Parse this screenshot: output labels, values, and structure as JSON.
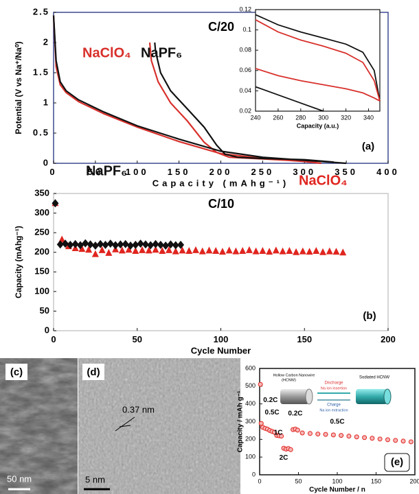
{
  "chart_data": [
    {
      "type": "line",
      "title": "C/20",
      "panel_label": "(a)",
      "xlabel": "Capacity (mAhg⁻¹)",
      "ylabel": "Potential (V vs Na⁺/Na⁰)",
      "xlim": [
        0,
        400
      ],
      "xticks": [
        0,
        50,
        100,
        150,
        200,
        250,
        300,
        350,
        400
      ],
      "ylim": [
        0,
        2.5
      ],
      "yticks": [
        0,
        0.5,
        1,
        1.5,
        2,
        2.5
      ],
      "series": [
        {
          "name": "NaClO₄",
          "color": "#d8302b",
          "x": [
            0,
            3,
            8,
            15,
            30,
            60,
            100,
            150,
            200,
            250,
            300,
            320,
            null,
            315,
            280,
            240,
            210,
            195,
            180,
            160,
            140,
            125,
            117,
            115
          ],
          "values": [
            2.45,
            1.6,
            1.3,
            1.17,
            1.02,
            0.82,
            0.6,
            0.36,
            0.16,
            0.08,
            0.03,
            0,
            null,
            0.02,
            0.05,
            0.08,
            0.1,
            0.18,
            0.35,
            0.7,
            1.0,
            1.35,
            1.7,
            2.0
          ]
        },
        {
          "name": "NaPF₆",
          "color": "#111111",
          "x": [
            0,
            3,
            8,
            15,
            30,
            60,
            100,
            150,
            200,
            250,
            300,
            330,
            350,
            null,
            335,
            300,
            250,
            220,
            205,
            195,
            180,
            160,
            140,
            128,
            122,
            121
          ],
          "values": [
            2.45,
            1.7,
            1.35,
            1.2,
            1.05,
            0.85,
            0.62,
            0.4,
            0.2,
            0.1,
            0.05,
            0.02,
            0,
            null,
            0.02,
            0.06,
            0.08,
            0.1,
            0.15,
            0.3,
            0.6,
            0.9,
            1.2,
            1.5,
            1.85,
            2.0
          ]
        }
      ]
    },
    {
      "type": "line",
      "xlabel": "Capacity (a.u.)",
      "xlim": [
        240,
        350
      ],
      "xticks": [
        240,
        260,
        280,
        300,
        320,
        340
      ],
      "ylim": [
        0.02,
        0.12
      ],
      "yticks": [
        0.02,
        0.04,
        0.06,
        0.08,
        0.1,
        0.12
      ],
      "series": [
        {
          "color": "#111111",
          "x": [
            240,
            260,
            280,
            300,
            320,
            335,
            345,
            350
          ],
          "values": [
            0.115,
            0.105,
            0.098,
            0.092,
            0.086,
            0.078,
            0.06,
            0.03
          ]
        },
        {
          "color": "#111111",
          "x": [
            240,
            260,
            280,
            300
          ],
          "values": [
            0.044,
            0.036,
            0.028,
            0.02
          ]
        },
        {
          "color": "#d8302b",
          "x": [
            240,
            260,
            280,
            300,
            320,
            335,
            345,
            350
          ],
          "values": [
            0.11,
            0.098,
            0.09,
            0.084,
            0.077,
            0.068,
            0.05,
            0.03
          ]
        },
        {
          "color": "#d8302b",
          "x": [
            240,
            260,
            280,
            300,
            320,
            335,
            345,
            350
          ],
          "values": [
            0.062,
            0.055,
            0.05,
            0.046,
            0.042,
            0.038,
            0.033,
            0.03
          ]
        }
      ]
    },
    {
      "type": "scatter",
      "title": "C/10",
      "panel_label": "(b)",
      "xlabel": "Cycle Number",
      "ylabel": "Capacity (mAhg⁻¹)",
      "xlim": [
        0,
        200
      ],
      "xticks": [
        0,
        50,
        100,
        150,
        200
      ],
      "ylim": [
        0,
        350
      ],
      "yticks": [
        0,
        50,
        100,
        150,
        200,
        250,
        300,
        350
      ],
      "series": [
        {
          "name": "NaClO₄",
          "color": "#e0251f",
          "marker": "triangle",
          "x": [
            1,
            5,
            9,
            13,
            17,
            21,
            25,
            29,
            33,
            37,
            41,
            45,
            49,
            53,
            57,
            61,
            65,
            69,
            73,
            77,
            81,
            85,
            89,
            93,
            97,
            101,
            105,
            109,
            113,
            117,
            121,
            125,
            129,
            133,
            137,
            141,
            145,
            149,
            153,
            157,
            161,
            165,
            169,
            173
          ],
          "values": [
            325,
            232,
            215,
            210,
            208,
            206,
            195,
            205,
            198,
            207,
            204,
            206,
            203,
            205,
            204,
            206,
            203,
            205,
            202,
            204,
            203,
            205,
            202,
            204,
            203,
            201,
            204,
            202,
            203,
            205,
            202,
            203,
            201,
            204,
            202,
            203,
            200,
            202,
            201,
            203,
            200,
            202,
            201,
            199
          ]
        },
        {
          "name": "NaPF₆",
          "color": "#111111",
          "marker": "diamond",
          "x": [
            1,
            4,
            7,
            10,
            13,
            16,
            19,
            22,
            25,
            28,
            31,
            34,
            37,
            40,
            43,
            46,
            49,
            52,
            55,
            58,
            61,
            64,
            67,
            70,
            73,
            76
          ],
          "values": [
            325,
            220,
            222,
            219,
            221,
            218,
            223,
            220,
            217,
            221,
            219,
            222,
            218,
            220,
            221,
            217,
            219,
            222,
            220,
            218,
            221,
            219,
            217,
            220,
            218,
            219
          ]
        }
      ]
    },
    {
      "type": "scatter",
      "panel_label": "(e)",
      "xlabel": "Cycle Number / n",
      "ylabel": "Capacity / mAh g⁻¹",
      "xlim": [
        0,
        200
      ],
      "xticks": [
        0,
        50,
        100,
        150,
        200
      ],
      "ylim": [
        0,
        600
      ],
      "yticks": [
        0,
        100,
        200,
        300,
        400,
        500,
        600
      ],
      "annotations": [
        "0.2C",
        "0.5C",
        "1C",
        "2C",
        "0.2C",
        "0.5C"
      ],
      "inset": {
        "left": "Hollow Carbon Nanowire",
        "left_sub": "(HCNW)",
        "right": "Sodiated HCNW",
        "discharge": "Discharge",
        "insertion": "Na ion insertion",
        "charge": "Charge",
        "extraction": "Na ion extraction"
      },
      "series": [
        {
          "color": "#e0251f",
          "marker": "circle",
          "x": [
            1,
            2,
            4,
            7,
            10,
            13,
            16,
            19,
            22,
            25,
            28,
            31,
            34,
            37,
            40,
            43,
            46,
            49,
            55,
            65,
            75,
            85,
            95,
            105,
            115,
            125,
            135,
            145,
            155,
            165,
            175,
            185,
            195
          ],
          "values": [
            510,
            290,
            268,
            262,
            258,
            250,
            245,
            240,
            222,
            220,
            218,
            150,
            145,
            148,
            142,
            255,
            258,
            252,
            236,
            233,
            230,
            228,
            225,
            222,
            218,
            214,
            210,
            206,
            202,
            198,
            194,
            190,
            186
          ]
        }
      ]
    }
  ],
  "images": {
    "c": {
      "label": "(c)",
      "scale": "50 nm"
    },
    "d": {
      "label": "(d)",
      "scale": "5 nm",
      "spacing": "0.37 nm"
    }
  }
}
